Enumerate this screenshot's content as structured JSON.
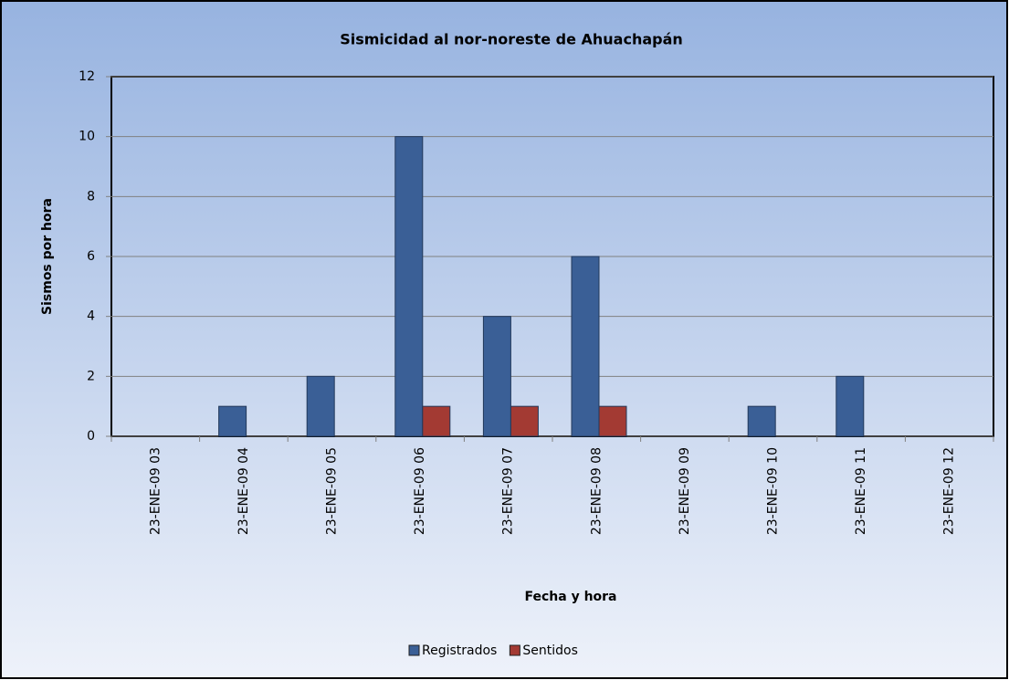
{
  "chart_data": {
    "type": "bar",
    "title": "Sismicidad  al nor-noreste de Ahuachapán",
    "x_label": "Fecha y hora",
    "y_label": "Sismos por hora",
    "categories": [
      "23-ENE-09 03",
      "23-ENE-09 04",
      "23-ENE-09 05",
      "23-ENE-09 06",
      "23-ENE-09 07",
      "23-ENE-09 08",
      "23-ENE-09 09",
      "23-ENE-09 10",
      "23-ENE-09 11",
      "23-ENE-09 12"
    ],
    "series": [
      {
        "name": "Registrados",
        "color": "#3a5f96",
        "values": [
          0,
          1,
          2,
          10,
          4,
          6,
          0,
          1,
          2,
          0
        ]
      },
      {
        "name": "Sentidos",
        "color": "#a33a33",
        "values": [
          0,
          0,
          0,
          1,
          1,
          1,
          0,
          0,
          0,
          0
        ]
      }
    ],
    "ylim": [
      0,
      12
    ],
    "yticks": [
      0,
      2,
      4,
      6,
      8,
      10,
      12
    ],
    "grid": true,
    "legend": "bottom"
  }
}
